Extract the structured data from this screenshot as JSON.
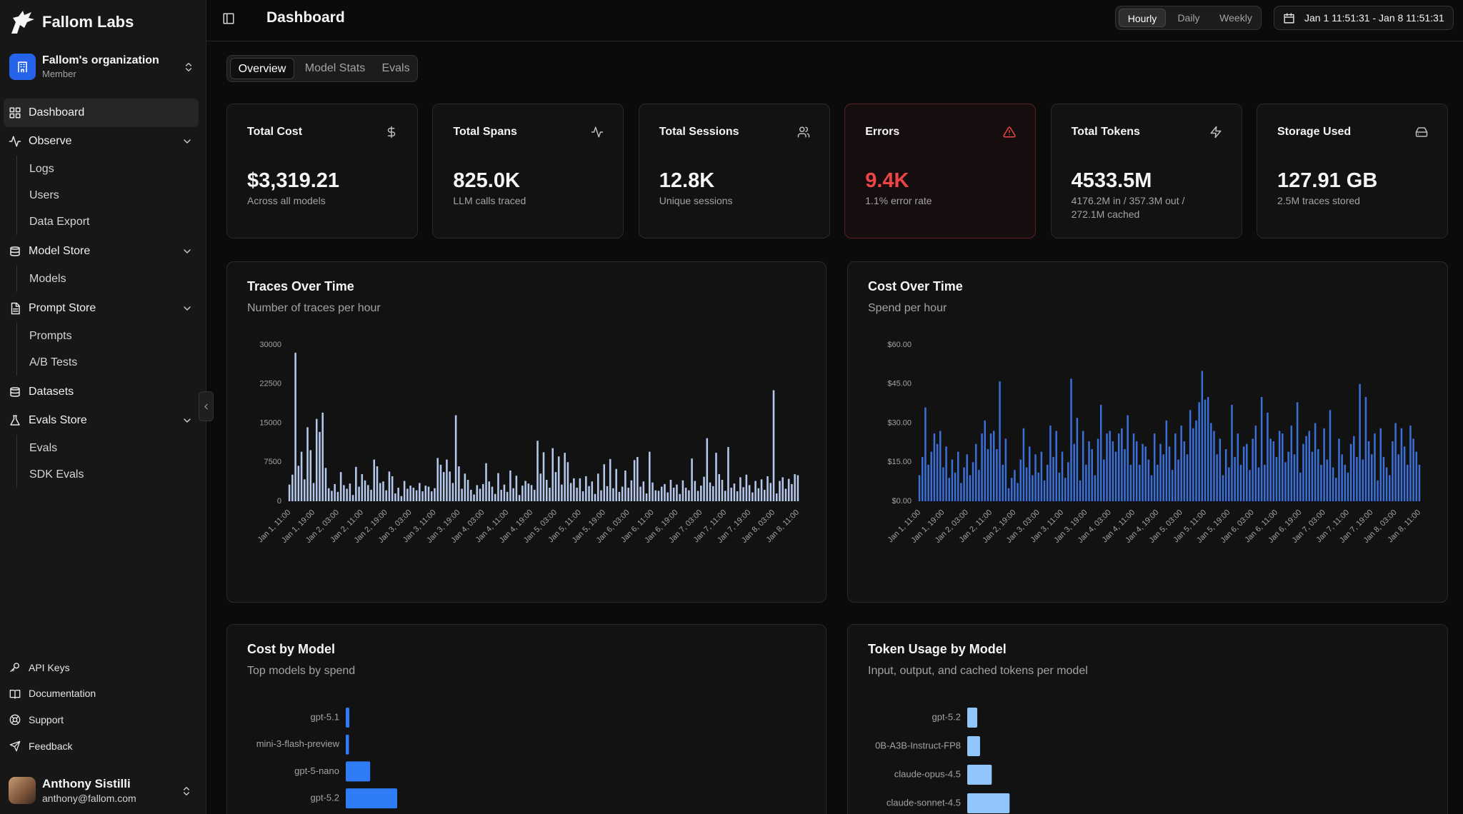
{
  "sidebar": {
    "brand": "Fallom Labs",
    "org": {
      "name": "Fallom's organization",
      "role": "Member"
    },
    "nav": [
      {
        "label": "Dashboard"
      },
      {
        "label": "Observe",
        "children": [
          "Logs",
          "Users",
          "Data Export"
        ]
      },
      {
        "label": "Model Store",
        "children": [
          "Models"
        ]
      },
      {
        "label": "Prompt Store",
        "children": [
          "Prompts",
          "A/B Tests"
        ]
      },
      {
        "label": "Datasets"
      },
      {
        "label": "Evals Store",
        "children": [
          "Evals",
          "SDK Evals"
        ]
      }
    ],
    "footer": [
      "API Keys",
      "Documentation",
      "Support",
      "Feedback"
    ],
    "user": {
      "name": "Anthony Sistilli",
      "email": "anthony@fallom.com"
    }
  },
  "header": {
    "title": "Dashboard",
    "granularity": [
      "Hourly",
      "Daily",
      "Weekly"
    ],
    "date_range": "Jan 1 11:51:31 - Jan 8 11:51:31"
  },
  "tabs": [
    "Overview",
    "Model Stats",
    "Evals"
  ],
  "cards": [
    {
      "title": "Total Cost",
      "value": "$3,319.21",
      "sub": "Across all models"
    },
    {
      "title": "Total Spans",
      "value": "825.0K",
      "sub": "LLM calls traced"
    },
    {
      "title": "Total Sessions",
      "value": "12.8K",
      "sub": "Unique sessions"
    },
    {
      "title": "Errors",
      "value": "9.4K",
      "sub": "1.1% error rate"
    },
    {
      "title": "Total Tokens",
      "value": "4533.5M",
      "sub": "4176.2M in / 357.3M out / 272.1M cached"
    },
    {
      "title": "Storage Used",
      "value": "127.91 GB",
      "sub": "2.5M traces stored"
    }
  ],
  "chart_data": [
    {
      "type": "bar",
      "title": "Traces Over Time",
      "subtitle": "Number of traces per hour",
      "color": "#b4c8ec",
      "categories": [
        "Jan 1, 11:00",
        null,
        null,
        null,
        null,
        null,
        null,
        null,
        "Jan 1, 19:00",
        null,
        null,
        null,
        null,
        null,
        null,
        null,
        "Jan 2, 03:00",
        null,
        null,
        null,
        null,
        null,
        null,
        null,
        "Jan 2, 11:00",
        null,
        null,
        null,
        null,
        null,
        null,
        null,
        "Jan 2, 19:00",
        null,
        null,
        null,
        null,
        null,
        null,
        null,
        "Jan 3, 03:00",
        null,
        null,
        null,
        null,
        null,
        null,
        null,
        "Jan 3, 11:00",
        null,
        null,
        null,
        null,
        null,
        null,
        null,
        "Jan 3, 19:00",
        null,
        null,
        null,
        null,
        null,
        null,
        null,
        "Jan 4, 03:00",
        null,
        null,
        null,
        null,
        null,
        null,
        null,
        "Jan 4, 11:00",
        null,
        null,
        null,
        null,
        null,
        null,
        null,
        "Jan 4, 19:00",
        null,
        null,
        null,
        null,
        null,
        null,
        null,
        "Jan 5, 03:00",
        null,
        null,
        null,
        null,
        null,
        null,
        null,
        "Jan 5, 11:00",
        null,
        null,
        null,
        null,
        null,
        null,
        null,
        "Jan 5, 19:00",
        null,
        null,
        null,
        null,
        null,
        null,
        null,
        "Jan 6, 03:00",
        null,
        null,
        null,
        null,
        null,
        null,
        null,
        "Jan 6, 11:00",
        null,
        null,
        null,
        null,
        null,
        null,
        null,
        "Jan 6, 19:00",
        null,
        null,
        null,
        null,
        null,
        null,
        null,
        "Jan 7, 03:00",
        null,
        null,
        null,
        null,
        null,
        null,
        null,
        "Jan 7, 11:00",
        null,
        null,
        null,
        null,
        null,
        null,
        null,
        "Jan 7, 19:00",
        null,
        null,
        null,
        null,
        null,
        null,
        null,
        "Jan 8, 03:00",
        null,
        null,
        null,
        null,
        null,
        null,
        null,
        "Jan 8, 11:00"
      ],
      "values": [
        3200,
        5100,
        28500,
        6800,
        9500,
        4200,
        14200,
        9800,
        3500,
        15800,
        13300,
        17000,
        6400,
        2500,
        2000,
        3300,
        1800,
        5600,
        3100,
        2400,
        3400,
        1200,
        6600,
        2800,
        5200,
        4000,
        3100,
        2200,
        8000,
        6700,
        3500,
        3800,
        2100,
        5700,
        4800,
        1500,
        2600,
        1000,
        3900,
        2400,
        3000,
        2600,
        2100,
        3500,
        1900,
        3000,
        2800,
        1900,
        2500,
        8300,
        7000,
        5600,
        8000,
        5700,
        3500,
        16500,
        6700,
        2400,
        5300,
        4100,
        2200,
        1300,
        3100,
        2400,
        3300,
        7300,
        3800,
        2800,
        1400,
        5400,
        2200,
        3200,
        1800,
        5900,
        2500,
        4900,
        1200,
        3000,
        3900,
        3400,
        3100,
        2200,
        11600,
        5300,
        9400,
        4100,
        2600,
        10200,
        5600,
        8600,
        3200,
        9300,
        7500,
        3500,
        4400,
        2600,
        4400,
        1900,
        4800,
        2900,
        3800,
        1400,
        5300,
        2100,
        7100,
        2900,
        8100,
        2500,
        6200,
        1800,
        2800,
        5900,
        2600,
        4000,
        7900,
        8500,
        2800,
        3800,
        1500,
        9500,
        3600,
        2100,
        2000,
        2800,
        3300,
        1700,
        4100,
        2600,
        3200,
        1400,
        4000,
        2600,
        2100,
        8200,
        3900,
        2000,
        3000,
        4700,
        12100,
        3600,
        2900,
        9300,
        5200,
        4100,
        2000,
        10400,
        2600,
        3400,
        1900,
        4600,
        2700,
        5100,
        3100,
        1700,
        3900,
        2500,
        4200,
        2200,
        4800,
        3500,
        21300,
        1500,
        3900,
        4600,
        2400,
        4300,
        3300,
        5200,
        5000
      ],
      "ylim": [
        0,
        30000
      ],
      "yticks": [
        0,
        7500,
        15000,
        22500,
        30000
      ]
    },
    {
      "type": "bar",
      "title": "Cost Over Time",
      "subtitle": "Spend per hour",
      "color": "#3b6fd8",
      "categories": [
        "Jan 1, 11:00",
        null,
        null,
        null,
        null,
        null,
        null,
        null,
        "Jan 1, 19:00",
        null,
        null,
        null,
        null,
        null,
        null,
        null,
        "Jan 2, 03:00",
        null,
        null,
        null,
        null,
        null,
        null,
        null,
        "Jan 2, 11:00",
        null,
        null,
        null,
        null,
        null,
        null,
        null,
        "Jan 2, 19:00",
        null,
        null,
        null,
        null,
        null,
        null,
        null,
        "Jan 3, 03:00",
        null,
        null,
        null,
        null,
        null,
        null,
        null,
        "Jan 3, 11:00",
        null,
        null,
        null,
        null,
        null,
        null,
        null,
        "Jan 3, 19:00",
        null,
        null,
        null,
        null,
        null,
        null,
        null,
        "Jan 4, 03:00",
        null,
        null,
        null,
        null,
        null,
        null,
        null,
        "Jan 4, 11:00",
        null,
        null,
        null,
        null,
        null,
        null,
        null,
        "Jan 4, 19:00",
        null,
        null,
        null,
        null,
        null,
        null,
        null,
        "Jan 5, 03:00",
        null,
        null,
        null,
        null,
        null,
        null,
        null,
        "Jan 5, 11:00",
        null,
        null,
        null,
        null,
        null,
        null,
        null,
        "Jan 5, 19:00",
        null,
        null,
        null,
        null,
        null,
        null,
        null,
        "Jan 6, 03:00",
        null,
        null,
        null,
        null,
        null,
        null,
        null,
        "Jan 6, 11:00",
        null,
        null,
        null,
        null,
        null,
        null,
        null,
        "Jan 6, 19:00",
        null,
        null,
        null,
        null,
        null,
        null,
        null,
        "Jan 7, 03:00",
        null,
        null,
        null,
        null,
        null,
        null,
        null,
        "Jan 7, 11:00",
        null,
        null,
        null,
        null,
        null,
        null,
        null,
        "Jan 7, 19:00",
        null,
        null,
        null,
        null,
        null,
        null,
        null,
        "Jan 8, 03:00",
        null,
        null,
        null,
        null,
        null,
        null,
        null,
        "Jan 8, 11:00"
      ],
      "values": [
        10,
        17,
        36,
        14,
        19,
        26,
        22,
        27,
        13,
        21,
        9,
        16,
        11,
        19,
        7,
        13,
        18,
        10,
        15,
        22,
        12,
        26,
        31,
        20,
        26,
        27,
        20,
        46,
        14,
        24,
        5,
        9,
        12,
        7,
        16,
        28,
        13,
        21,
        10,
        18,
        11,
        19,
        8,
        14,
        29,
        17,
        27,
        11,
        19,
        9,
        15,
        47,
        22,
        32,
        8,
        27,
        14,
        23,
        20,
        10,
        24,
        37,
        16,
        26,
        27,
        23,
        19,
        26,
        28,
        20,
        33,
        14,
        26,
        23,
        14,
        22,
        21,
        16,
        10,
        26,
        14,
        22,
        18,
        31,
        21,
        12,
        26,
        16,
        29,
        23,
        18,
        35,
        28,
        31,
        38,
        50,
        39,
        40,
        30,
        27,
        18,
        24,
        10,
        20,
        13,
        37,
        17,
        26,
        14,
        21,
        22,
        12,
        24,
        29,
        13,
        40,
        14,
        34,
        24,
        23,
        17,
        27,
        26,
        15,
        19,
        29,
        18,
        38,
        11,
        22,
        25,
        27,
        19,
        30,
        20,
        14,
        28,
        16,
        35,
        13,
        9,
        24,
        18,
        14,
        11,
        22,
        25,
        17,
        45,
        16,
        40,
        23,
        18,
        26,
        8,
        28,
        17,
        13,
        10,
        23,
        30,
        18,
        28,
        21,
        14,
        29,
        24,
        19,
        14
      ],
      "ylim": [
        0,
        60
      ],
      "yticks": [
        {
          "value": 0,
          "label": "$0.00"
        },
        {
          "value": 15,
          "label": "$15.00"
        },
        {
          "value": 30,
          "label": "$30.00"
        },
        {
          "value": 45,
          "label": "$45.00"
        },
        {
          "value": 60,
          "label": "$60.00"
        }
      ]
    },
    {
      "type": "hbar",
      "title": "Cost by Model",
      "subtitle": "Top models by spend",
      "color": "#2f7cf6",
      "categories": [
        "gpt-5.1",
        "mini-3-flash-preview",
        "gpt-5-nano",
        "gpt-5.2"
      ],
      "values": [
        28,
        25,
        190,
        400
      ]
    },
    {
      "type": "hbar",
      "title": "Token Usage by Model",
      "subtitle": "Input, output, and cached tokens per model",
      "color": "#93c5fd",
      "categories": [
        "gpt-5.2",
        "0B-A3B-Instruct-FP8",
        "claude-opus-4.5",
        "claude-sonnet-4.5"
      ],
      "values": [
        180,
        230,
        440,
        760
      ]
    }
  ]
}
